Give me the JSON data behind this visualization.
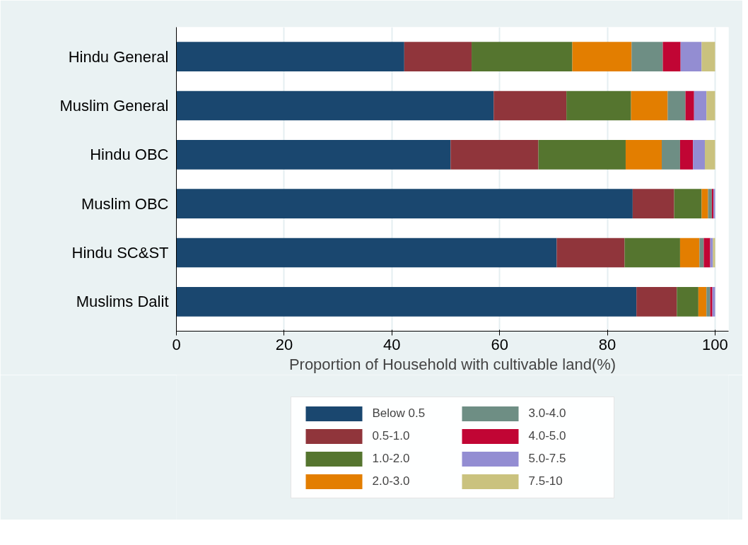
{
  "chart_data": {
    "type": "bar",
    "orientation": "horizontal",
    "stacked": true,
    "xlabel": "Proportion of Household with cultivable land(%)",
    "categories": [
      "Hindu General",
      "Muslim General",
      "Hindu OBC",
      "Muslim OBC",
      "Hindu SC&ST",
      "Muslims Dalit"
    ],
    "series": [
      {
        "name": "Below 0.5",
        "color": "#1a476f",
        "values": [
          42.3,
          58.9,
          50.9,
          84.7,
          70.6,
          85.4
        ]
      },
      {
        "name": "0.5-1.0",
        "color": "#90353b",
        "values": [
          12.5,
          13.5,
          16.3,
          7.7,
          12.6,
          7.5
        ]
      },
      {
        "name": "1.0-2.0",
        "color": "#55752f",
        "values": [
          18.7,
          12.0,
          16.2,
          5.1,
          10.3,
          4.0
        ]
      },
      {
        "name": "2.0-3.0",
        "color": "#e37e00",
        "values": [
          11.0,
          6.8,
          6.7,
          1.2,
          3.6,
          1.5
        ]
      },
      {
        "name": "3.0-4.0",
        "color": "#6e8e84",
        "values": [
          5.8,
          3.3,
          3.4,
          0.7,
          0.8,
          0.7
        ]
      },
      {
        "name": "4.0-5.0",
        "color": "#c10534",
        "values": [
          3.3,
          1.6,
          2.4,
          0.3,
          1.2,
          0.4
        ]
      },
      {
        "name": "5.0-7.5",
        "color": "#938dd2",
        "values": [
          3.9,
          2.3,
          2.2,
          0.3,
          0.5,
          0.5
        ]
      },
      {
        "name": "7.5-10",
        "color": "#cac27e",
        "values": [
          2.5,
          1.6,
          1.9,
          0.0,
          0.4,
          0.0
        ]
      }
    ],
    "xlim": [
      0,
      102.5
    ],
    "xticks": [
      0,
      20,
      40,
      60,
      80,
      100
    ],
    "grid": "x",
    "legend": "bottom"
  }
}
